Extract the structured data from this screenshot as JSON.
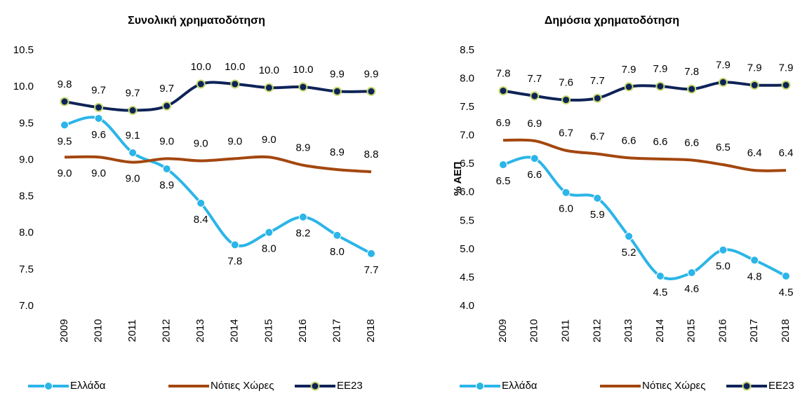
{
  "chart_data": [
    {
      "type": "line",
      "title": "Συνολική χρηματοδότηση",
      "categories": [
        "2009",
        "2010",
        "2011",
        "2012",
        "2013",
        "2014",
        "2015",
        "2016",
        "2017",
        "2018"
      ],
      "ylim": [
        7.0,
        10.5
      ],
      "yticks": [
        {
          "value": 7.0,
          "label": "7.0"
        },
        7.5,
        {
          "value": 8.0,
          "label": "8.0"
        },
        8.5,
        {
          "value": 9.0,
          "label": "9.0"
        },
        9.5,
        {
          "value": 10.0,
          "label": "10.0"
        },
        10.5
      ],
      "series": [
        {
          "name": "Ελλάδα",
          "color": "#2bb5e8",
          "marker": true,
          "values": [
            9.48,
            9.57,
            9.1,
            8.88,
            8.41,
            7.84,
            8.01,
            8.22,
            7.97,
            7.72
          ],
          "value_labels": [
            "9.5",
            "9.6",
            "9.1",
            "8.9",
            "8.4",
            "7.8",
            "8.0",
            "8.2",
            "8.0",
            "7.7"
          ]
        },
        {
          "name": "Νότιες Χώρες",
          "color": "#a3470f",
          "marker": false,
          "values": [
            9.04,
            9.04,
            8.97,
            9.02,
            8.99,
            9.02,
            9.04,
            8.93,
            8.87,
            8.84
          ],
          "value_labels": [
            "9.0",
            "9.0",
            "9.0",
            "9.0",
            "9.0",
            "9.0",
            "9.0",
            "8.9",
            "8.9",
            "8.8"
          ]
        },
        {
          "name": "ΕΕ23",
          "color": "#0e2357",
          "marker": true,
          "marker_edge": "#c5d86c",
          "values": [
            9.8,
            9.72,
            9.68,
            9.74,
            10.04,
            10.04,
            9.99,
            10.0,
            9.94,
            9.94
          ],
          "value_labels": [
            "9.8",
            "9.7",
            "9.7",
            "9.7",
            "10.0",
            "10.0",
            "10.0",
            "10.0",
            "9.9",
            "9.9"
          ]
        }
      ]
    },
    {
      "type": "line",
      "title": "Δημόσια χρηματοδότηση",
      "y_label": "% ΑΕΠ",
      "categories": [
        "2009",
        "2010",
        "2011",
        "2012",
        "2013",
        "2014",
        "2015",
        "2016",
        "2017",
        "2018"
      ],
      "ylim": [
        4.0,
        8.5
      ],
      "yticks": [
        {
          "value": 4.0,
          "label": "4.0"
        },
        4.5,
        {
          "value": 5.0,
          "label": "5.0"
        },
        5.5,
        {
          "value": 6.0,
          "label": "6.0"
        },
        6.5,
        {
          "value": 7.0,
          "label": "7.0"
        },
        7.5,
        {
          "value": 8.0,
          "label": "8.0"
        },
        8.5
      ],
      "series": [
        {
          "name": "Ελλάδα",
          "color": "#2bb5e8",
          "marker": true,
          "values": [
            6.49,
            6.6,
            6.0,
            5.9,
            5.23,
            4.53,
            4.59,
            4.99,
            4.81,
            4.53
          ],
          "value_labels": [
            "6.5",
            "6.6",
            "6.0",
            "5.9",
            "5.2",
            "4.5",
            "4.6",
            "5.0",
            "4.8",
            "4.5"
          ]
        },
        {
          "name": "Νότιες Χώρες",
          "color": "#a3470f",
          "marker": false,
          "values": [
            6.92,
            6.91,
            6.74,
            6.68,
            6.61,
            6.59,
            6.57,
            6.49,
            6.39,
            6.39
          ],
          "value_labels": [
            "6.9",
            "6.9",
            "6.7",
            "6.7",
            "6.6",
            "6.6",
            "6.6",
            "6.5",
            "6.4",
            "6.4"
          ]
        },
        {
          "name": "ΕΕ23",
          "color": "#0e2357",
          "marker": true,
          "marker_edge": "#c5d86c",
          "values": [
            7.79,
            7.7,
            7.63,
            7.66,
            7.86,
            7.87,
            7.82,
            7.94,
            7.89,
            7.89
          ],
          "value_labels": [
            "7.8",
            "7.7",
            "7.6",
            "7.7",
            "7.9",
            "7.9",
            "7.8",
            "7.9",
            "7.9",
            "7.9"
          ]
        }
      ]
    }
  ]
}
